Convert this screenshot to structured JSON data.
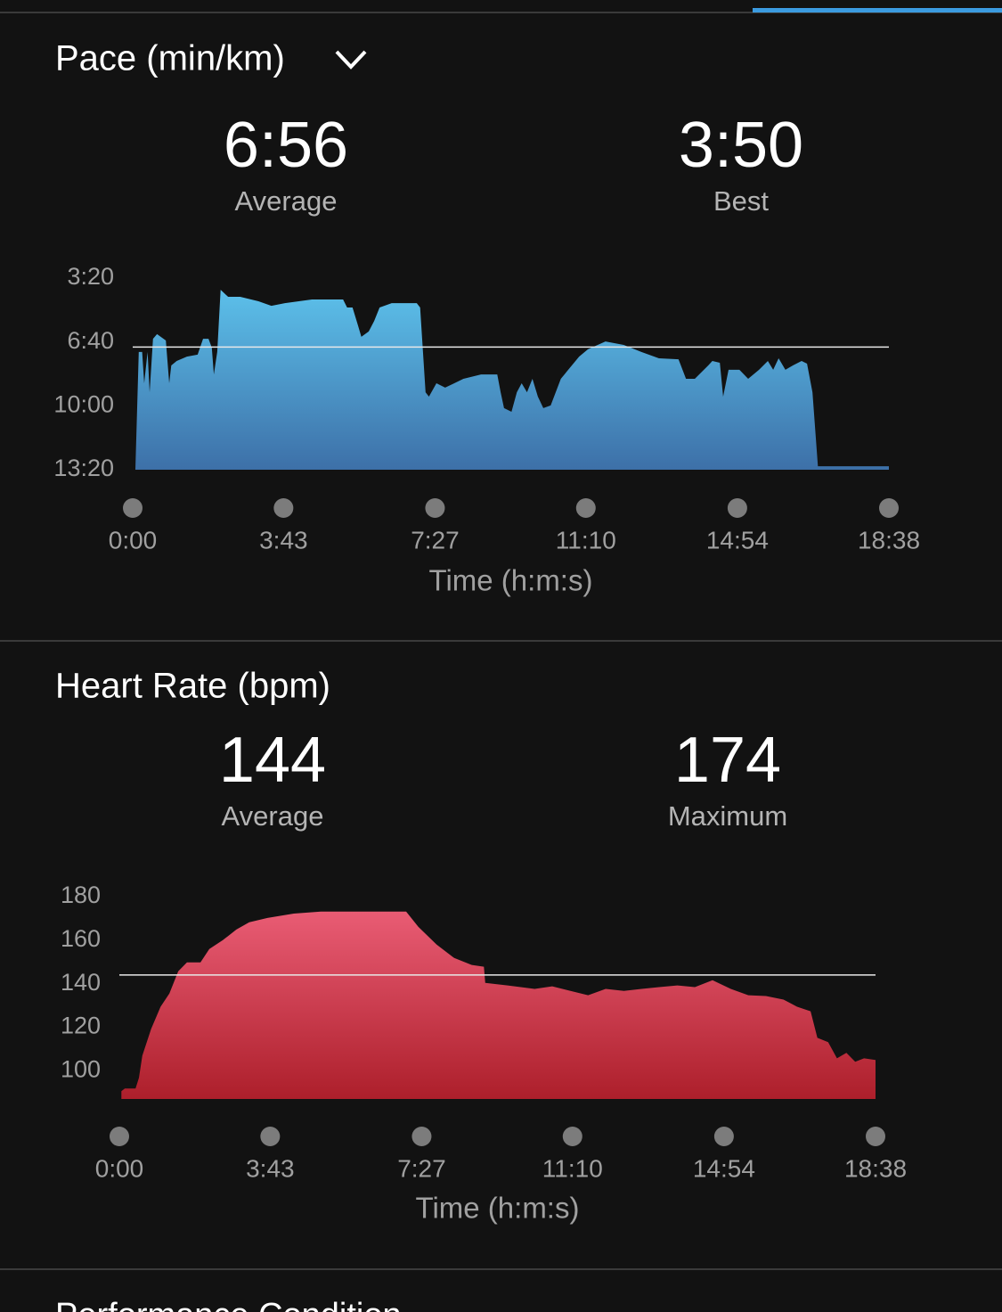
{
  "chart_data": [
    {
      "type": "area",
      "title": "Pace (min/km)",
      "stats": [
        {
          "value": "6:56",
          "label": "Average"
        },
        {
          "value": "3:50",
          "label": "Best"
        }
      ],
      "average_line": 6.933,
      "x": [
        4,
        9,
        14,
        17,
        22,
        25,
        30,
        36,
        49,
        54,
        57,
        65,
        80,
        96,
        104,
        112,
        117,
        120,
        125,
        130,
        141,
        159,
        186,
        205,
        225,
        265,
        311,
        317,
        325,
        333,
        338,
        349,
        357,
        365,
        383,
        420,
        425,
        433,
        438,
        449,
        462,
        489,
        515,
        539,
        544,
        549,
        560,
        568,
        575,
        583,
        591,
        599,
        607,
        618,
        633,
        660,
        673,
        699,
        726,
        752,
        778,
        807,
        818,
        831,
        851,
        857,
        868,
        873,
        881,
        897,
        910,
        926,
        939,
        947,
        955,
        965,
        976,
        989,
        997,
        1005,
        1013,
        1118
      ],
      "values": [
        13.33,
        7.19,
        7.19,
        8.82,
        7.19,
        9.29,
        6.5,
        6.26,
        6.59,
        8.82,
        7.89,
        7.66,
        7.43,
        7.33,
        6.5,
        6.5,
        6.96,
        8.36,
        7.19,
        3.94,
        4.31,
        4.31,
        4.54,
        4.78,
        4.64,
        4.45,
        4.45,
        4.87,
        4.87,
        5.8,
        6.4,
        6.12,
        5.57,
        4.87,
        4.64,
        4.64,
        4.87,
        9.29,
        9.52,
        8.82,
        9.05,
        8.59,
        8.36,
        8.36,
        9.29,
        10.12,
        10.31,
        9.29,
        8.82,
        9.29,
        8.59,
        9.52,
        10.12,
        9.98,
        8.59,
        7.43,
        7.05,
        6.64,
        6.82,
        7.19,
        7.52,
        7.57,
        8.59,
        8.59,
        7.89,
        7.66,
        7.75,
        9.52,
        8.12,
        8.12,
        8.59,
        8.12,
        7.66,
        8.12,
        7.52,
        8.12,
        7.89,
        7.66,
        7.8,
        9.29,
        13.15,
        13.15
      ],
      "colors": [
        "#5cc0ea",
        "#3d70a8"
      ],
      "xlim": [
        0,
        1118
      ],
      "xticks": [
        {
          "value": 0,
          "label": "0:00"
        },
        {
          "value": 223,
          "label": "3:43"
        },
        {
          "value": 447,
          "label": "7:27"
        },
        {
          "value": 670,
          "label": "11:10"
        },
        {
          "value": 894,
          "label": "14:54"
        },
        {
          "value": 1118,
          "label": "18:38"
        }
      ],
      "ylim": [
        13.333,
        3.333
      ],
      "yticks": [
        {
          "value": 3.333,
          "label": "3:20"
        },
        {
          "value": 6.667,
          "label": "6:40"
        },
        {
          "value": 10,
          "label": "10:00"
        },
        {
          "value": 13.333,
          "label": "13:20"
        }
      ],
      "x_label": "Time (h:m:s)"
    },
    {
      "type": "area",
      "title": "Heart Rate (bpm)",
      "stats": [
        {
          "value": "144",
          "label": "Average"
        },
        {
          "value": "174",
          "label": "Maximum"
        }
      ],
      "average_line": 144,
      "x": [
        3,
        8,
        24,
        29,
        34,
        47,
        61,
        74,
        87,
        100,
        120,
        133,
        153,
        173,
        192,
        219,
        258,
        298,
        350,
        403,
        424,
        442,
        469,
        495,
        521,
        539,
        541,
        574,
        614,
        640,
        667,
        693,
        719,
        746,
        772,
        798,
        825,
        851,
        877,
        904,
        930,
        956,
        982,
        1002,
        1022,
        1032,
        1048,
        1061,
        1075,
        1088,
        1101,
        1118
      ],
      "values": [
        90.6,
        91.8,
        91.8,
        96.7,
        106.9,
        119.2,
        129.4,
        135.5,
        145.7,
        149.8,
        149.8,
        155.9,
        160,
        164.9,
        168.2,
        170.2,
        172.2,
        173.1,
        173.1,
        173.1,
        173.1,
        166.1,
        158,
        151.8,
        148.6,
        147.8,
        140.4,
        139.2,
        137.6,
        138.8,
        136.7,
        134.7,
        137.6,
        136.7,
        137.6,
        138.4,
        139.2,
        138.4,
        141.6,
        137.6,
        134.7,
        134.3,
        132.7,
        129.4,
        127.3,
        115.1,
        113.1,
        105.7,
        108.2,
        104.1,
        105.7,
        104.9
      ],
      "colors": [
        "#e95c74",
        "#ad1f2b"
      ],
      "xlim": [
        0,
        1118
      ],
      "xticks": [
        {
          "value": 0,
          "label": "0:00"
        },
        {
          "value": 223,
          "label": "3:43"
        },
        {
          "value": 447,
          "label": "7:27"
        },
        {
          "value": 670,
          "label": "11:10"
        },
        {
          "value": 894,
          "label": "14:54"
        },
        {
          "value": 1118,
          "label": "18:38"
        }
      ],
      "ylim": [
        87,
        180
      ],
      "yticks": [
        100,
        120,
        140,
        160,
        180
      ],
      "x_label": "Time (h:m:s)"
    }
  ],
  "next_section": {
    "title": "Performance Condition"
  }
}
